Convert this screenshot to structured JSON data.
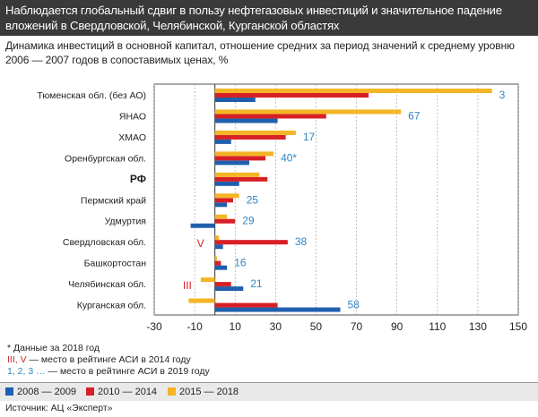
{
  "header": {
    "title": "Наблюдается глобальный сдвиг в пользу нефтегазовых инвестиций и значительное падение вложений в Свердловской, Челябинской, Курганской областях"
  },
  "subtitle": "Динамика инвестиций в основной капитал, отношение средних за период значений к среднему уровню 2006 — 2007 годов в сопоставимых ценах, %",
  "notes": {
    "asterisk": "* Данные за 2018 год",
    "roman_part": "III, V",
    "roman_rest": " — место в рейтинге АСИ в 2014 году",
    "arabic_part": "1, 2, 3 …",
    "arabic_rest": " — место в рейтинге АСИ в 2019 году"
  },
  "source": "Источник: АЦ «Эксперт»",
  "colors": {
    "series_2008_2009": "#1f5fae",
    "series_2010_2014": "#d71f26",
    "series_2015_2018": "#f4b526",
    "rank_2019": "#2f86c4",
    "rank_2014": "#d71f26",
    "header_bg": "#3a3a3a"
  },
  "chart_data": {
    "type": "bar",
    "orientation": "horizontal",
    "categories": [
      "Тюменская обл. (без АО)",
      "ЯНАО",
      "ХМАО",
      "Оренбургская обл.",
      "РФ",
      "Пермский край",
      "Удмуртия",
      "Свердловская обл.",
      "Башкортостан",
      "Челябинская обл.",
      "Курганская обл."
    ],
    "bold_categories": [
      "РФ"
    ],
    "series": [
      {
        "name": "2008 — 2009",
        "values": [
          20,
          31,
          8,
          17,
          12,
          6,
          -12,
          4,
          6,
          14,
          62
        ]
      },
      {
        "name": "2010 — 2014",
        "values": [
          76,
          55,
          35,
          25,
          26,
          9,
          10,
          36,
          3,
          8,
          31
        ]
      },
      {
        "name": "2015 — 2018",
        "values": [
          137,
          92,
          40,
          29,
          22,
          12,
          6,
          2,
          1,
          -7,
          -13
        ]
      }
    ],
    "rank_2019": [
      "3",
      "67",
      "17",
      "40*",
      "",
      "25",
      "29",
      "38",
      "16",
      "21",
      "58"
    ],
    "rank_2014": [
      "",
      "",
      "",
      "",
      "",
      "",
      "",
      "V",
      "",
      "III",
      ""
    ],
    "xlim": [
      -30,
      150
    ],
    "xticks": [
      -30,
      -10,
      10,
      30,
      50,
      70,
      90,
      110,
      130,
      150
    ],
    "grid": true,
    "legend_position": "bottom"
  }
}
